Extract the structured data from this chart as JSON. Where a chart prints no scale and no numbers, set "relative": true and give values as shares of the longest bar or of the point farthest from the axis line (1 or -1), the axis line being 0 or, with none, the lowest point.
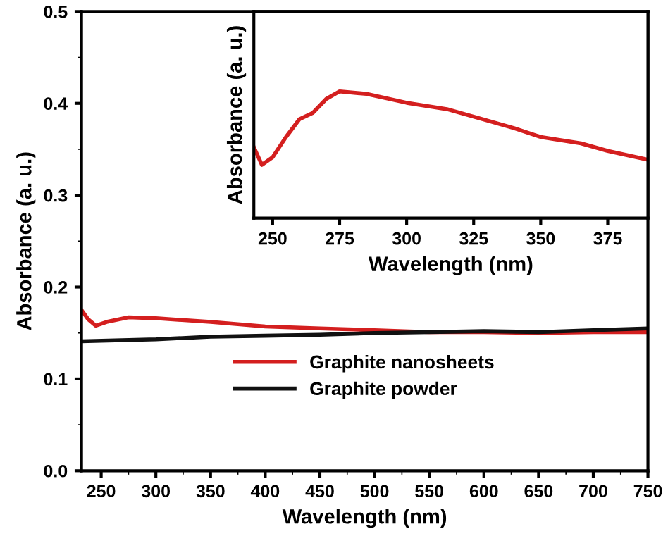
{
  "chart_data": [
    {
      "type": "line",
      "xlabel": "Wavelength (nm)",
      "ylabel": "Absorbance (a. u.)",
      "xlim": [
        232,
        750
      ],
      "ylim": [
        0,
        0.5
      ],
      "xticks": [
        250,
        300,
        350,
        400,
        450,
        500,
        550,
        600,
        650,
        700,
        750
      ],
      "yticks": [
        {
          "value": 0,
          "label": "0.0"
        },
        0.1,
        0.2,
        0.3,
        0.4,
        0.5
      ],
      "legend": "bottom",
      "series": [
        {
          "name": "Graphite nanosheets",
          "color": "#d41f1f",
          "x": [
            232,
            238,
            245,
            255,
            275,
            300,
            350,
            400,
            450,
            500,
            550,
            600,
            650,
            700,
            750
          ],
          "values": [
            0.175,
            0.165,
            0.158,
            0.162,
            0.167,
            0.166,
            0.162,
            0.157,
            0.155,
            0.153,
            0.151,
            0.151,
            0.15,
            0.151,
            0.151
          ]
        },
        {
          "name": "Graphite powder",
          "color": "#111111",
          "x": [
            232,
            300,
            350,
            400,
            450,
            500,
            550,
            600,
            650,
            700,
            750
          ],
          "values": [
            0.141,
            0.143,
            0.146,
            0.147,
            0.148,
            0.15,
            0.151,
            0.152,
            0.151,
            0.153,
            0.155
          ]
        }
      ]
    },
    {
      "type": "line",
      "relative": true,
      "xlabel": "Wavelength (nm)",
      "ylabel": "Absorbance (a. u.)",
      "xlim": [
        243,
        390
      ],
      "xticks": [
        250,
        275,
        300,
        325,
        350,
        375
      ],
      "tick_labels": "x",
      "series": [
        {
          "color": "#d41f1f",
          "x": [
            243,
            246,
            250,
            255,
            260,
            265,
            270,
            275,
            285,
            300,
            315,
            325,
            340,
            350,
            365,
            375,
            390
          ],
          "values": [
            0.56,
            0.42,
            0.48,
            0.64,
            0.78,
            0.83,
            0.94,
            1.0,
            0.98,
            0.91,
            0.86,
            0.8,
            0.71,
            0.64,
            0.59,
            0.53,
            0.46
          ]
        }
      ]
    }
  ]
}
